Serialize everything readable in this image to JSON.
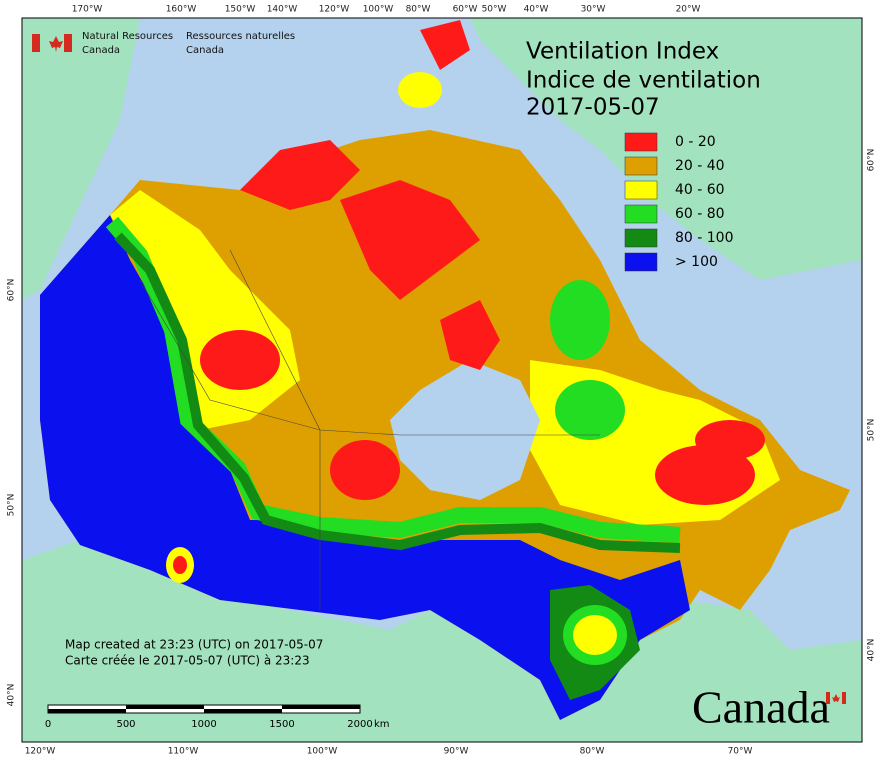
{
  "header": {
    "agency_en": [
      "Natural Resources",
      "Canada"
    ],
    "agency_fr": [
      "Ressources naturelles",
      "Canada"
    ]
  },
  "title": [
    "Ventilation Index",
    "Indice de ventilation"
  ],
  "date": "2017-05-07",
  "legend": [
    {
      "label": "0 - 20",
      "color": "#ff1a1a"
    },
    {
      "label": "20 - 40",
      "color": "#dda000"
    },
    {
      "label": "40 - 60",
      "color": "#ffff00"
    },
    {
      "label": "60 - 80",
      "color": "#22dd22"
    },
    {
      "label": "80 - 100",
      "color": "#138a13"
    },
    {
      "label": "> 100",
      "color": "#0a10ee"
    }
  ],
  "graticule": {
    "top": [
      "170°W",
      "160°W",
      "150°W",
      "140°W",
      "120°W",
      "100°W",
      "80°W",
      "60°W",
      "50°W",
      "40°W",
      "30°W",
      "20°W"
    ],
    "bottom": [
      "120°W",
      "110°W",
      "100°W",
      "90°W",
      "80°W",
      "70°W"
    ],
    "left": [
      "60°N",
      "50°N",
      "40°N"
    ],
    "right": [
      "60°N",
      "50°N",
      "40°N"
    ]
  },
  "scale_bar": {
    "labels": [
      "0",
      "500",
      "1000",
      "1500",
      "2000"
    ],
    "unit": "km"
  },
  "footer": {
    "created_en": "Map created at 23:23 (UTC) on 2017-05-07",
    "created_fr": "Carte créée le 2017-05-07 (UTC) à 23:23"
  },
  "wordmark": "Canada"
}
